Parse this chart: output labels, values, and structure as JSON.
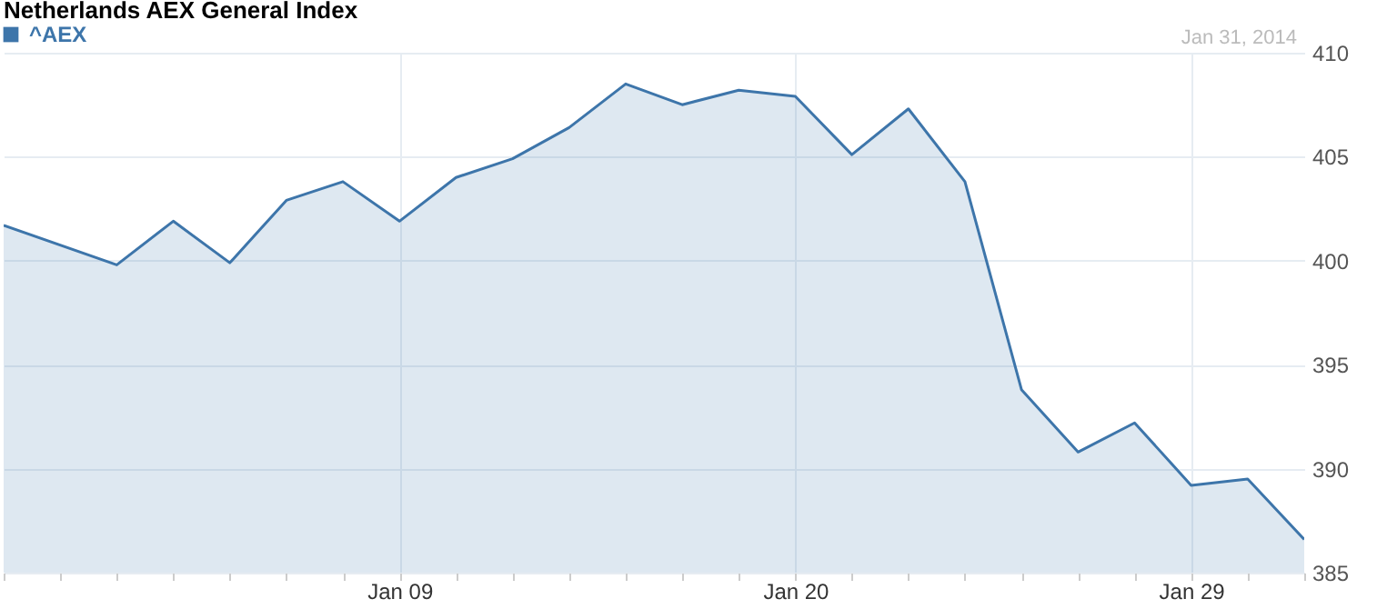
{
  "chart_data": {
    "type": "area",
    "title": "Netherlands AEX General Index",
    "annotations": [
      "Jan 31, 2014"
    ],
    "categories": [
      null,
      null,
      null,
      null,
      null,
      null,
      null,
      "Jan 09",
      null,
      null,
      null,
      null,
      null,
      null,
      "Jan 20",
      null,
      null,
      null,
      null,
      null,
      null,
      "Jan 29",
      null,
      null
    ],
    "series": [
      {
        "name": "^AEX",
        "color": "#3d75aa",
        "values": [
          401.7,
          null,
          399.8,
          401.9,
          399.9,
          402.9,
          403.8,
          401.9,
          404.0,
          404.9,
          406.4,
          408.5,
          407.5,
          408.2,
          407.9,
          405.1,
          407.3,
          403.8,
          393.8,
          390.8,
          392.2,
          389.2,
          389.5,
          386.6
        ]
      }
    ],
    "ylim": [
      385,
      410
    ],
    "yticks": [
      385,
      390,
      395,
      400,
      405,
      410
    ],
    "grid": true,
    "legend": "top left"
  }
}
